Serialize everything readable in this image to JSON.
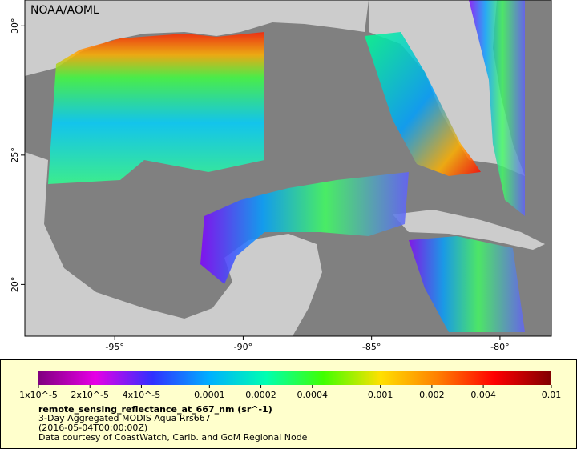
{
  "map": {
    "title": "NOAA/AOML",
    "lon_range": [
      -98.5,
      -78
    ],
    "lat_range": [
      18,
      31
    ],
    "lon_ticks": [
      {
        "value": -95,
        "label": "-95°"
      },
      {
        "value": -90,
        "label": "-90°"
      },
      {
        "value": -85,
        "label": "-85°"
      },
      {
        "value": -80,
        "label": "-80°"
      }
    ],
    "lat_ticks": [
      {
        "value": 20,
        "label": "20°"
      },
      {
        "value": 25,
        "label": "25°"
      },
      {
        "value": 30,
        "label": "30°"
      }
    ]
  },
  "colorbar": {
    "scale": "log",
    "range": [
      1e-05,
      0.01
    ],
    "colors": [
      "#80007f",
      "#e600e6",
      "#3030ff",
      "#00b0ff",
      "#00ffb0",
      "#40ff00",
      "#ffe000",
      "#ff8000",
      "#ff0000",
      "#800000"
    ],
    "ticks": [
      {
        "value": 1e-05,
        "label": "1x10^-5"
      },
      {
        "value": 2e-05,
        "label": "2x10^-5"
      },
      {
        "value": 4e-05,
        "label": "4x10^-5"
      },
      0.0001,
      0.0002,
      0.0004,
      0.001,
      0.002,
      0.004,
      0.01
    ]
  },
  "legend": {
    "variable": "remote_sensing_reflectance_at_667_nm (sr^-1)",
    "lines": [
      "3-Day Aggregated MODIS Aqua Rrs667",
      "(2016-05-04T00:00:00Z)",
      "Data courtesy of CoastWatch, Carib. and GoM Regional Node"
    ]
  }
}
